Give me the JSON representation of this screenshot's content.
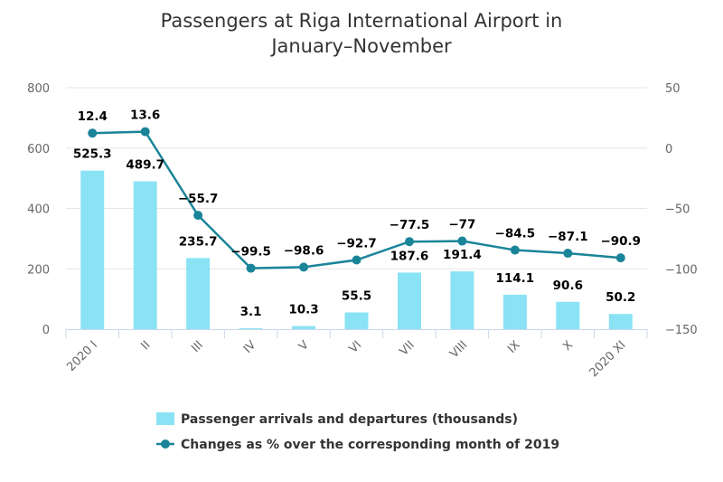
{
  "chart_data": {
    "type": "bar",
    "title_lines": [
      "Passengers at Riga International Airport in",
      "January–November"
    ],
    "categories": [
      "2020 I",
      "II",
      "III",
      "IV",
      "V",
      "VI",
      "VII",
      "VIII",
      "IX",
      "X",
      "2020 XI"
    ],
    "series": [
      {
        "name": "Passenger arrivals and departures (thousands)",
        "type": "bar",
        "axis": "left",
        "color": "#8ae3f4",
        "values": [
          525.3,
          489.7,
          235.7,
          3.1,
          10.3,
          55.5,
          187.6,
          191.4,
          114.1,
          90.6,
          50.2
        ],
        "labels": [
          "525.3",
          "489.7",
          "235.7",
          "3.1",
          "10.3",
          "55.5",
          "187.6",
          "191.4",
          "114.1",
          "90.6",
          "50.2"
        ]
      },
      {
        "name": "Changes as % over the corresponding month of 2019",
        "type": "line",
        "axis": "right",
        "color": "#1a8499",
        "values": [
          12.4,
          13.6,
          -55.7,
          -99.5,
          -98.6,
          -92.7,
          -77.5,
          -77,
          -84.5,
          -87.1,
          -90.9
        ],
        "labels": [
          "12.4",
          "13.6",
          "−55.7",
          "−99.5",
          "−98.6",
          "−92.7",
          "−77.5",
          "−77",
          "−84.5",
          "−87.1",
          "−90.9"
        ]
      }
    ],
    "y_left": {
      "min": 0,
      "max": 800,
      "ticks": [
        0,
        200,
        400,
        600,
        800
      ],
      "tick_labels": [
        "0",
        "200",
        "400",
        "600",
        "800"
      ]
    },
    "y_right": {
      "min": -150,
      "max": 50,
      "ticks": [
        -150,
        -100,
        -50,
        0,
        50
      ],
      "tick_labels": [
        "−150",
        "−100",
        "−50",
        "0",
        "50"
      ]
    },
    "xlabel": "",
    "ylabel_left": "",
    "ylabel_right": "",
    "grid": true,
    "legend_position": "bottom-center"
  }
}
